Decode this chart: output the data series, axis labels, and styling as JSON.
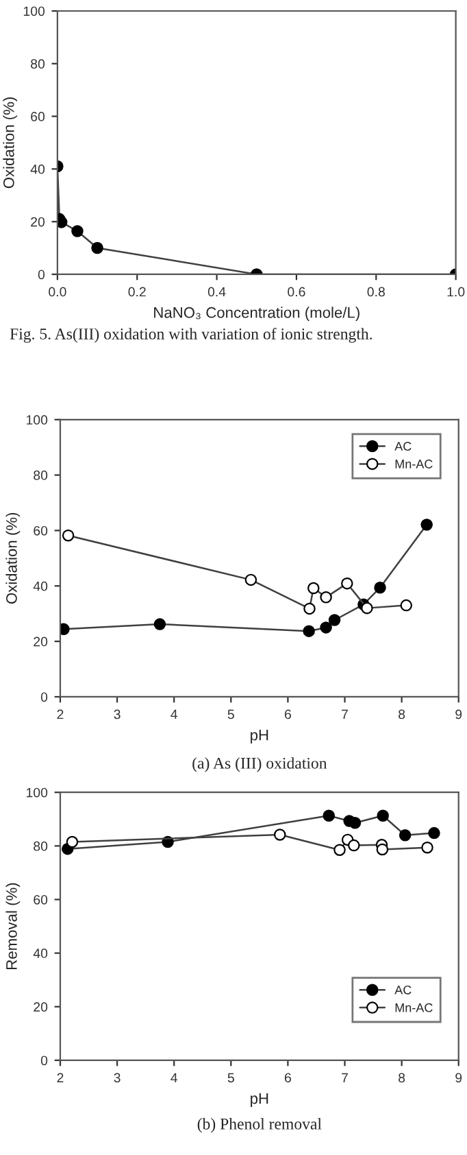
{
  "chart_data": [
    {
      "type": "line",
      "title": "Fig. 5. As(III) oxidation with variation of ionic strength.",
      "xlabel": "NaNO₃ Concentration (mole/L)",
      "ylabel": "Oxidation (%)",
      "x": [
        0,
        0.005,
        0.01,
        0.05,
        0.1,
        0.5,
        1.0
      ],
      "series": [
        {
          "color": "#000000",
          "values": [
            41,
            21,
            19.8,
            16.4,
            10,
            0,
            0
          ]
        }
      ],
      "xlim": [
        0,
        1
      ],
      "xticks": [
        {
          "value": 0,
          "label": "0.0"
        },
        {
          "value": 0.2,
          "label": "0.2"
        },
        {
          "value": 0.4,
          "label": "0.4"
        },
        {
          "value": 0.6,
          "label": "0.6"
        },
        {
          "value": 0.8,
          "label": "0.8"
        },
        {
          "value": 1,
          "label": "1.0"
        }
      ],
      "ylim": [
        0,
        100
      ],
      "yticks": [
        0,
        20,
        40,
        60,
        80,
        100
      ],
      "marker": "circle",
      "grid": false,
      "legend": false
    },
    {
      "type": "line",
      "title": "(a) As (III) oxidation",
      "xlabel": "pH",
      "ylabel": "Oxidation (%)",
      "series": [
        {
          "name": "AC",
          "color": "#000000",
          "x": [
            2.06,
            3.75,
            6.37,
            6.67,
            6.82,
            7.33,
            7.62,
            8.44
          ],
          "values": [
            24.4,
            26.2,
            23.7,
            25.0,
            27.7,
            33.3,
            39.4,
            62.1
          ]
        },
        {
          "name": "Mn-AC",
          "color": "#ffffff",
          "x": [
            2.14,
            5.35,
            6.38,
            6.45,
            6.67,
            7.04,
            7.39,
            8.08
          ],
          "values": [
            58.2,
            42.2,
            31.8,
            39.2,
            35.9,
            40.9,
            32.0,
            33.0
          ]
        }
      ],
      "xlim": [
        2,
        9
      ],
      "xticks": [
        2,
        3,
        4,
        5,
        6,
        7,
        8,
        9
      ],
      "ylim": [
        0,
        100
      ],
      "yticks": [
        0,
        20,
        40,
        60,
        80,
        100
      ],
      "marker": "circle",
      "grid": false,
      "legend": "top right"
    },
    {
      "type": "line",
      "title": "(b) Phenol removal",
      "xlabel": "pH",
      "ylabel": "Removal (%)",
      "series": [
        {
          "name": "AC",
          "color": "#000000",
          "x": [
            2.13,
            3.89,
            6.72,
            7.08,
            7.18,
            7.67,
            8.06,
            8.57
          ],
          "values": [
            78.9,
            81.5,
            91.3,
            89.3,
            88.6,
            91.3,
            84.0,
            84.8
          ]
        },
        {
          "name": "Mn-AC",
          "color": "#ffffff",
          "x": [
            2.21,
            5.86,
            6.91,
            7.05,
            7.16,
            7.65,
            7.66,
            8.45
          ],
          "values": [
            81.5,
            84.2,
            78.5,
            82.3,
            80.2,
            80.4,
            78.7,
            79.4
          ]
        }
      ],
      "xlim": [
        2,
        9
      ],
      "xticks": [
        2,
        3,
        4,
        5,
        6,
        7,
        8,
        9
      ],
      "ylim": [
        0,
        100
      ],
      "yticks": [
        0,
        20,
        40,
        60,
        80,
        100
      ],
      "marker": "circle",
      "grid": false,
      "legend": "lower right"
    }
  ]
}
